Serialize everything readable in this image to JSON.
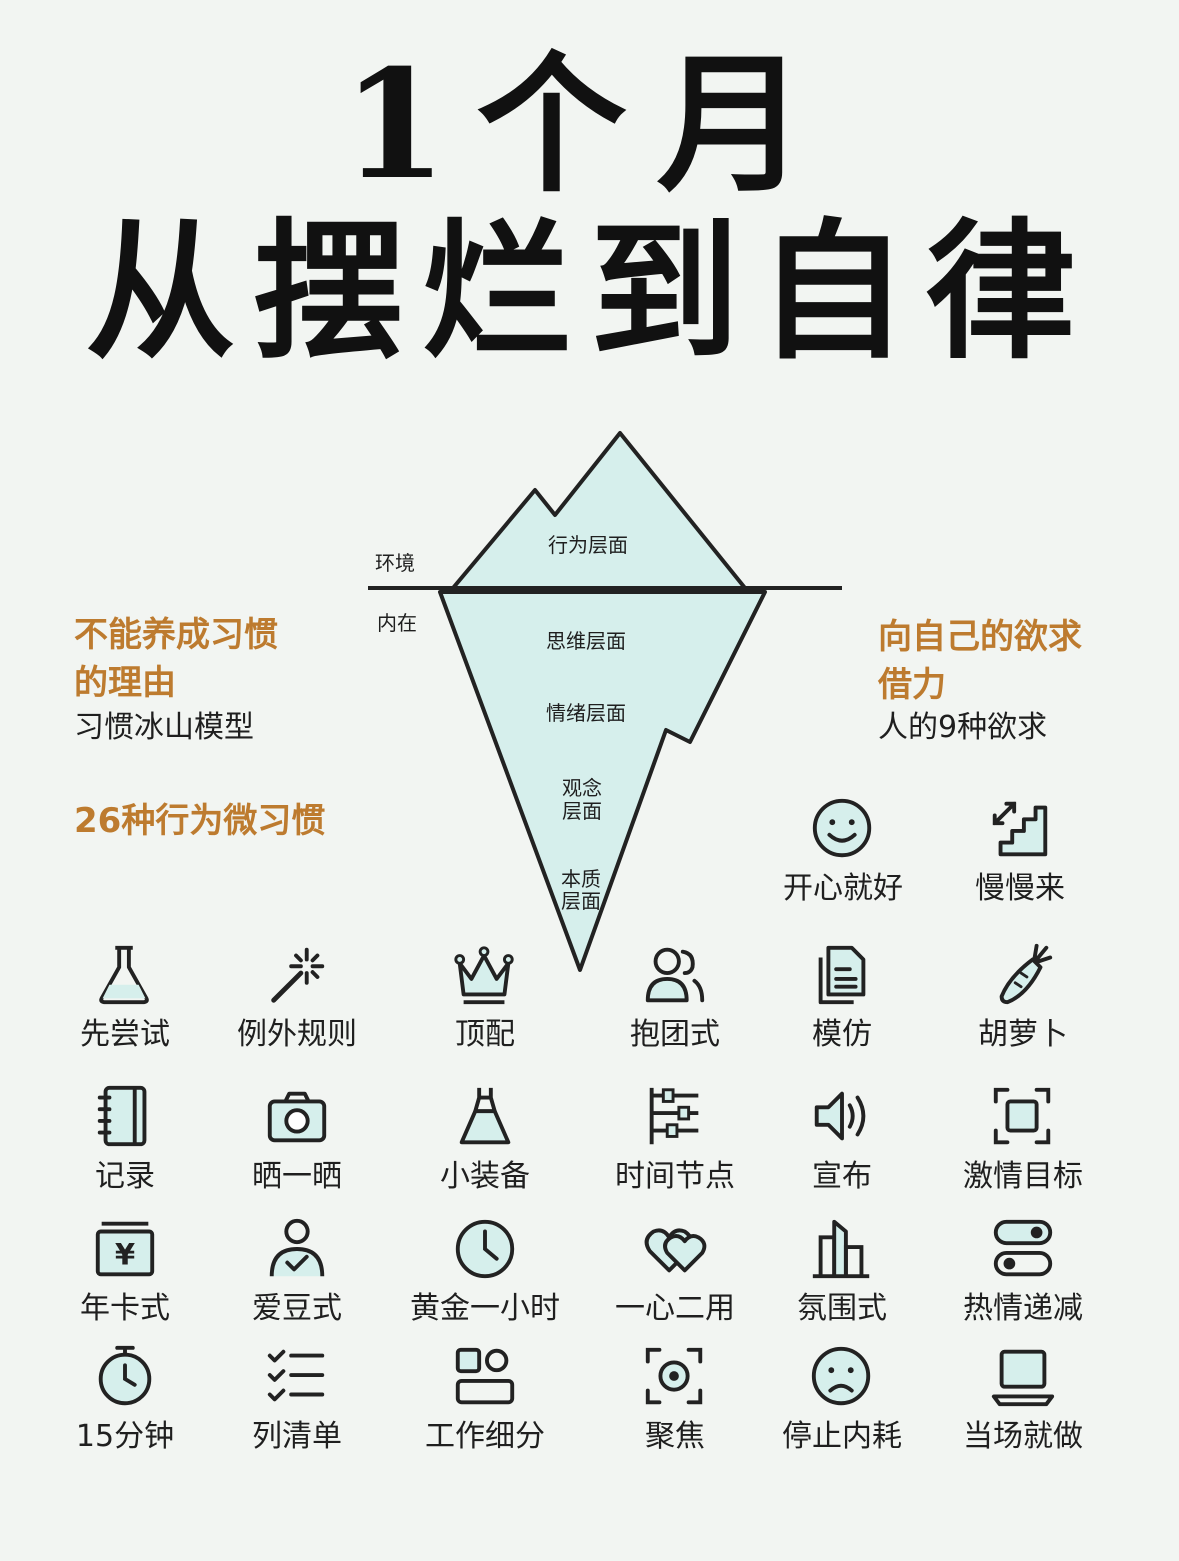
{
  "title": {
    "line1": "1个月",
    "line2": "从摆烂到自律"
  },
  "left_panel": {
    "heading_line1": "不能养成习惯",
    "heading_line2": "的理由",
    "subtitle": "习惯冰山模型",
    "heading2": "26种行为微习惯"
  },
  "right_panel": {
    "heading_line1": "向自己的欲求",
    "heading_line2": "借力",
    "subtitle": "人的9种欲求"
  },
  "iceberg": {
    "label_above": "环境",
    "label_below": "内在",
    "layers": [
      "行为层面",
      "思维层面",
      "情绪层面",
      "观念",
      "层面",
      "本质",
      "层面"
    ]
  },
  "colors": {
    "accent": "#bd7b2f",
    "ice_fill": "#d6efec",
    "stroke": "#222222",
    "background": "#f2f5f2"
  },
  "habits": [
    {
      "label": "开心就好",
      "icon": "smile-icon"
    },
    {
      "label": "慢慢来",
      "icon": "stairs-icon"
    },
    {
      "label": "先尝试",
      "icon": "flask-icon"
    },
    {
      "label": "例外规则",
      "icon": "magic-wand-icon"
    },
    {
      "label": "顶配",
      "icon": "crown-icon"
    },
    {
      "label": "抱团式",
      "icon": "group-icon"
    },
    {
      "label": "模仿",
      "icon": "copy-document-icon"
    },
    {
      "label": "胡萝卜",
      "icon": "carrot-icon"
    },
    {
      "label": "记录",
      "icon": "notebook-icon"
    },
    {
      "label": "晒一晒",
      "icon": "camera-icon"
    },
    {
      "label": "小装备",
      "icon": "dress-icon"
    },
    {
      "label": "时间节点",
      "icon": "timeline-icon"
    },
    {
      "label": "宣布",
      "icon": "speaker-icon"
    },
    {
      "label": "激情目标",
      "icon": "target-frame-icon"
    },
    {
      "label": "年卡式",
      "icon": "card-icon"
    },
    {
      "label": "爱豆式",
      "icon": "idol-icon"
    },
    {
      "label": "黄金一小时",
      "icon": "clock-icon"
    },
    {
      "label": "一心二用",
      "icon": "two-hearts-icon"
    },
    {
      "label": "氛围式",
      "icon": "buildings-icon"
    },
    {
      "label": "热情递减",
      "icon": "toggle-icon"
    },
    {
      "label": "15分钟",
      "icon": "stopwatch-icon"
    },
    {
      "label": "列清单",
      "icon": "checklist-icon"
    },
    {
      "label": "工作细分",
      "icon": "split-blocks-icon"
    },
    {
      "label": "聚焦",
      "icon": "focus-icon"
    },
    {
      "label": "停止内耗",
      "icon": "sad-face-icon"
    },
    {
      "label": "当场就做",
      "icon": "laptop-icon"
    }
  ]
}
